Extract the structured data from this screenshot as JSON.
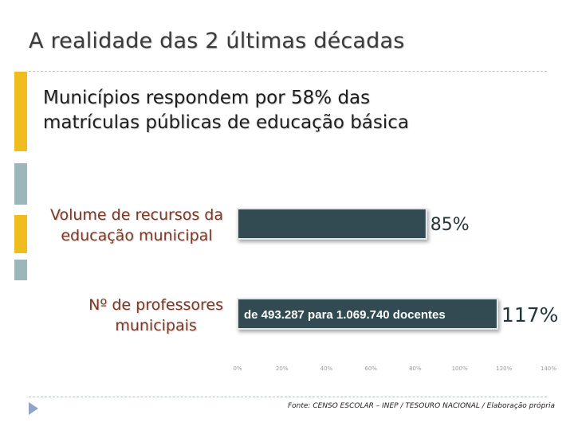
{
  "slide": {
    "title": "A realidade das 2 últimas décadas",
    "subtitle_line1": "Municípios respondem por 58% das",
    "subtitle_line2": "matrículas públicas de educação básica",
    "source": "Fonte: CENSO ESCOLAR – INEP / TESOURO NACIONAL / Elaboração própria"
  },
  "colors": {
    "bar_fill": "#334c52",
    "bar_border": "#e3e7e8",
    "accent_yellow": "#f0bd1f",
    "accent_teal": "#9bb7bc",
    "category_text": "#7a3a2a",
    "value_text": "#22363a"
  },
  "chart_data": {
    "type": "bar",
    "orientation": "horizontal",
    "categories": [
      "Volume de recursos da educação municipal",
      "Nº de professores municipais"
    ],
    "category_lines": [
      [
        "Volume de recursos da",
        "educação municipal"
      ],
      [
        "Nº de professores",
        "municipais"
      ]
    ],
    "values": [
      85,
      117
    ],
    "value_labels": [
      "85%",
      "117%"
    ],
    "bar_annotations": [
      "",
      "de 493.287 para 1.069.740 docentes"
    ],
    "xlim": [
      0,
      140
    ],
    "xticks": [
      "0%",
      "20%",
      "40%",
      "60%",
      "80%",
      "100%",
      "120%",
      "140%"
    ],
    "xlabel": "",
    "ylabel": "",
    "grid": false,
    "legend": "none"
  }
}
